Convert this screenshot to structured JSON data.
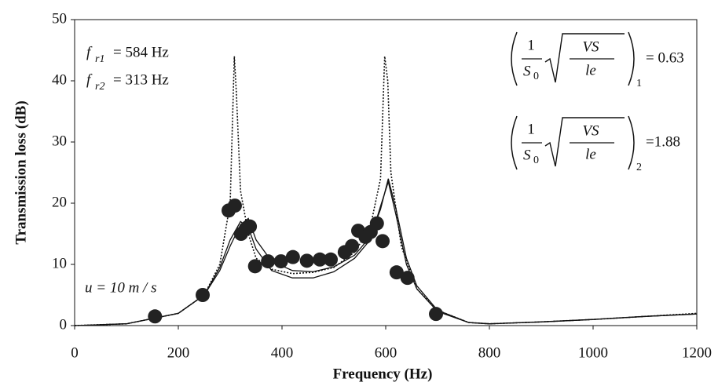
{
  "chart_data": {
    "type": "line-scatter",
    "xlabel": "Frequency (Hz)",
    "ylabel": "Transmission loss (dB)",
    "xlim": [
      0,
      1200
    ],
    "xticks": [
      0,
      200,
      400,
      600,
      800,
      1000,
      1200
    ],
    "ylim": [
      0,
      50
    ],
    "yticks": [
      0,
      10,
      20,
      30,
      40,
      50
    ],
    "annotations": {
      "fr1": {
        "symbol": "f",
        "subscript": "r1",
        "value": "= 584 Hz"
      },
      "fr2": {
        "symbol": "f",
        "subscript": "r2",
        "value": "= 313 Hz"
      },
      "u": {
        "text": "u = 10 m / s"
      },
      "ratio1": {
        "numerator": "1",
        "denominator": "S",
        "denominator_subscript": "0",
        "radicand_top": "VS",
        "radicand_bottom": "le",
        "subscript": "1",
        "value": "= 0.63"
      },
      "ratio2": {
        "numerator": "1",
        "denominator": "S",
        "denominator_subscript": "0",
        "radicand_top": "VS",
        "radicand_bottom": "le",
        "subscript": "2",
        "value": "=1.88"
      }
    },
    "series": [
      {
        "style": "dotted",
        "color": "#111",
        "x": [
          0,
          100,
          200,
          250,
          280,
          300,
          308,
          312,
          320,
          335,
          350,
          380,
          420,
          460,
          500,
          540,
          570,
          590,
          598,
          604,
          610,
          630,
          660,
          700,
          760,
          800,
          900,
          1000,
          1100,
          1200
        ],
        "values": [
          0,
          0.3,
          2,
          5,
          10,
          20,
          44,
          38,
          22,
          15,
          11,
          9.2,
          8.5,
          8.7,
          9.5,
          12,
          16,
          24,
          44,
          40,
          25,
          13,
          6,
          2.5,
          0.5,
          0.3,
          0.6,
          1,
          1.5,
          2
        ]
      },
      {
        "style": "solid",
        "color": "#111",
        "x": [
          0,
          100,
          200,
          250,
          280,
          300,
          320,
          335,
          350,
          380,
          420,
          460,
          500,
          540,
          570,
          590,
          605,
          620,
          640,
          660,
          700,
          760,
          800,
          900,
          1000,
          1100,
          1200
        ],
        "values": [
          0,
          0.3,
          2,
          5,
          9,
          13,
          16.5,
          17.5,
          14,
          10.5,
          9,
          8.8,
          9.6,
          11.5,
          14.5,
          19,
          24,
          19,
          11,
          6.5,
          2.5,
          0.5,
          0.3,
          0.6,
          1,
          1.5,
          1.9
        ]
      },
      {
        "style": "solid",
        "color": "#111",
        "x": [
          0,
          100,
          200,
          250,
          280,
          300,
          320,
          335,
          350,
          380,
          420,
          460,
          500,
          540,
          570,
          590,
          605,
          620,
          640,
          660,
          700,
          760,
          800,
          900,
          1000,
          1100,
          1200
        ],
        "values": [
          0,
          0.3,
          2,
          5,
          9.5,
          14,
          17,
          16,
          12.5,
          9,
          7.8,
          7.8,
          8.8,
          11,
          14,
          19.5,
          23.5,
          18,
          10,
          6,
          2.3,
          0.5,
          0.3,
          0.6,
          1,
          1.5,
          1.9
        ]
      }
    ],
    "measured": {
      "color": "#222",
      "x": [
        155,
        247,
        297,
        309,
        321,
        330,
        338,
        348,
        373,
        398,
        421,
        448,
        473,
        494,
        521,
        535,
        547,
        561,
        571,
        583,
        594,
        621,
        642,
        697
      ],
      "values": [
        1.5,
        5,
        18.8,
        19.6,
        15,
        15.8,
        16.2,
        9.7,
        10.5,
        10.5,
        11.2,
        10.6,
        10.8,
        10.8,
        12,
        13,
        15.5,
        14.5,
        15.3,
        16.7,
        13.8,
        8.7,
        7.8,
        1.9
      ]
    }
  }
}
